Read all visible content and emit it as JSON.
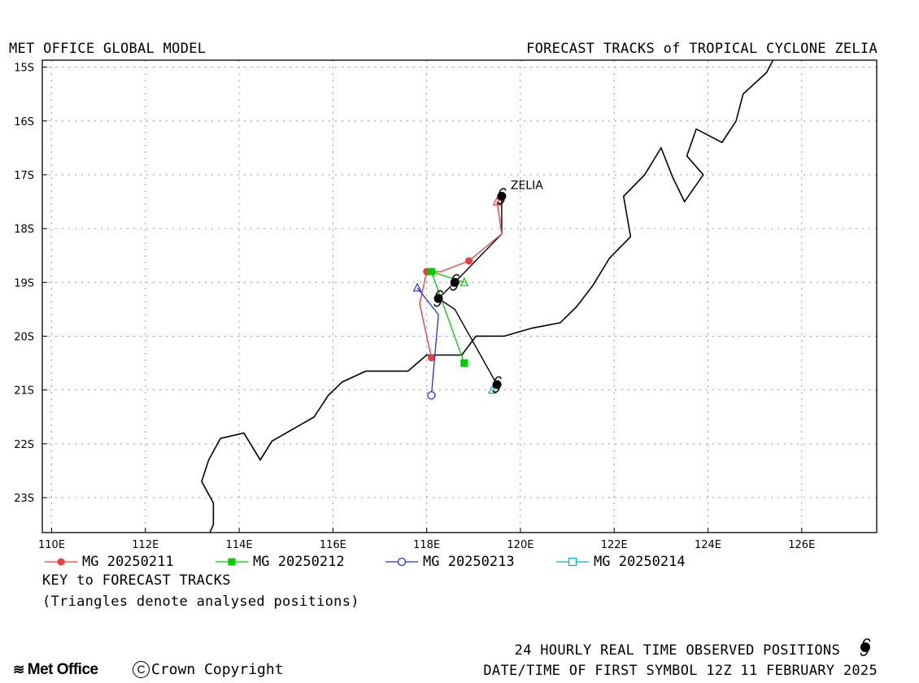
{
  "header": {
    "left_title": "MET OFFICE GLOBAL MODEL",
    "right_title": "FORECAST TRACKS of TROPICAL CYCLONE ZELIA"
  },
  "map": {
    "storm_label": "ZELIA",
    "lon_range": [
      109.8,
      127.6
    ],
    "lat_range": [
      -23.65,
      -14.87
    ],
    "x_ticks": [
      {
        "v": 110,
        "label": "110E"
      },
      {
        "v": 112,
        "label": "112E"
      },
      {
        "v": 114,
        "label": "114E"
      },
      {
        "v": 116,
        "label": "116E"
      },
      {
        "v": 118,
        "label": "118E"
      },
      {
        "v": 120,
        "label": "120E"
      },
      {
        "v": 122,
        "label": "122E"
      },
      {
        "v": 124,
        "label": "124E"
      },
      {
        "v": 126,
        "label": "126E"
      }
    ],
    "y_ticks": [
      {
        "v": -15,
        "label": "15S"
      },
      {
        "v": -16,
        "label": "16S"
      },
      {
        "v": -17,
        "label": "17S"
      },
      {
        "v": -18,
        "label": "18S"
      },
      {
        "v": -19,
        "label": "19S"
      },
      {
        "v": -20,
        "label": "20S"
      },
      {
        "v": -21,
        "label": "21S"
      },
      {
        "v": -22,
        "label": "22S"
      },
      {
        "v": -23,
        "label": "23S"
      }
    ],
    "grid": "dotted",
    "coastline": [
      [
        113.35,
        -23.7
      ],
      [
        113.45,
        -23.5
      ],
      [
        113.45,
        -23.1
      ],
      [
        113.2,
        -22.7
      ],
      [
        113.35,
        -22.3
      ],
      [
        113.6,
        -21.9
      ],
      [
        114.1,
        -21.8
      ],
      [
        114.45,
        -22.3
      ],
      [
        114.7,
        -21.95
      ],
      [
        115.3,
        -21.65
      ],
      [
        115.6,
        -21.5
      ],
      [
        115.9,
        -21.1
      ],
      [
        116.2,
        -20.85
      ],
      [
        116.7,
        -20.65
      ],
      [
        117.6,
        -20.65
      ],
      [
        118.0,
        -20.35
      ],
      [
        118.75,
        -20.35
      ],
      [
        119.05,
        -20.0
      ],
      [
        119.65,
        -20.0
      ],
      [
        120.25,
        -19.85
      ],
      [
        120.85,
        -19.75
      ],
      [
        121.2,
        -19.45
      ],
      [
        121.55,
        -19.05
      ],
      [
        121.9,
        -18.55
      ],
      [
        122.35,
        -18.15
      ],
      [
        122.2,
        -17.4
      ],
      [
        122.65,
        -17.0
      ],
      [
        123.0,
        -16.5
      ],
      [
        123.25,
        -17.05
      ],
      [
        123.5,
        -17.5
      ],
      [
        123.9,
        -17.0
      ],
      [
        123.55,
        -16.65
      ],
      [
        123.75,
        -16.15
      ],
      [
        124.3,
        -16.4
      ],
      [
        124.6,
        -16.0
      ],
      [
        124.75,
        -15.5
      ],
      [
        125.25,
        -15.1
      ],
      [
        125.4,
        -14.85
      ]
    ],
    "observed_track": [
      [
        119.6,
        -17.4
      ],
      [
        119.6,
        -18.1
      ],
      [
        118.6,
        -19.0
      ],
      [
        118.25,
        -19.3
      ],
      [
        118.6,
        -19.5
      ],
      [
        119.5,
        -20.9
      ]
    ],
    "observed_positions": [
      [
        119.6,
        -17.4
      ],
      [
        118.6,
        -19.0
      ],
      [
        118.25,
        -19.3
      ],
      [
        119.5,
        -20.9
      ]
    ],
    "forecast_tracks": [
      {
        "name": "MG 20250211",
        "color": "#ee3b3b",
        "marker": "filled-circle",
        "analysed": [
          119.5,
          -17.5
        ],
        "track": [
          [
            119.5,
            -17.5
          ],
          [
            119.6,
            -18.1
          ],
          [
            118.9,
            -18.6
          ],
          [
            118.3,
            -18.8
          ],
          [
            118.0,
            -18.8
          ],
          [
            117.85,
            -19.4
          ],
          [
            118.1,
            -20.4
          ]
        ],
        "markers": [
          [
            118.9,
            -18.6
          ],
          [
            118.0,
            -18.8
          ],
          [
            118.1,
            -20.4
          ]
        ]
      },
      {
        "name": "MG 20250212",
        "color": "#00cc00",
        "marker": "filled-square",
        "analysed": [
          118.8,
          -19.0
        ],
        "track": [
          [
            118.8,
            -19.0
          ],
          [
            118.1,
            -18.8
          ],
          [
            118.8,
            -20.5
          ]
        ],
        "markers": [
          [
            118.1,
            -18.8
          ],
          [
            118.8,
            -20.5
          ]
        ]
      },
      {
        "name": "MG 20250213",
        "color": "#2233dd",
        "marker": "open-circle",
        "analysed": [
          117.8,
          -19.1
        ],
        "track": [
          [
            117.8,
            -19.1
          ],
          [
            118.25,
            -19.6
          ],
          [
            118.1,
            -21.1
          ]
        ],
        "markers": [
          [
            118.1,
            -21.1
          ]
        ]
      },
      {
        "name": "MG 20250214",
        "color": "#00bbbb",
        "marker": "open-square",
        "analysed": [
          119.4,
          -21.0
        ],
        "track": [
          [
            119.4,
            -21.0
          ]
        ],
        "markers": []
      }
    ]
  },
  "legend": {
    "key_title": "KEY to FORECAST TRACKS",
    "key_note": "(Triangles denote analysed positions)"
  },
  "footer": {
    "logo_text": "Met Office",
    "copyright": "Crown Copyright",
    "copyright_symbol": "C",
    "observed_note": "24 HOURLY REAL TIME OBSERVED POSITIONS",
    "first_symbol": "DATE/TIME OF FIRST SYMBOL 12Z 11 FEBRUARY 2025"
  }
}
